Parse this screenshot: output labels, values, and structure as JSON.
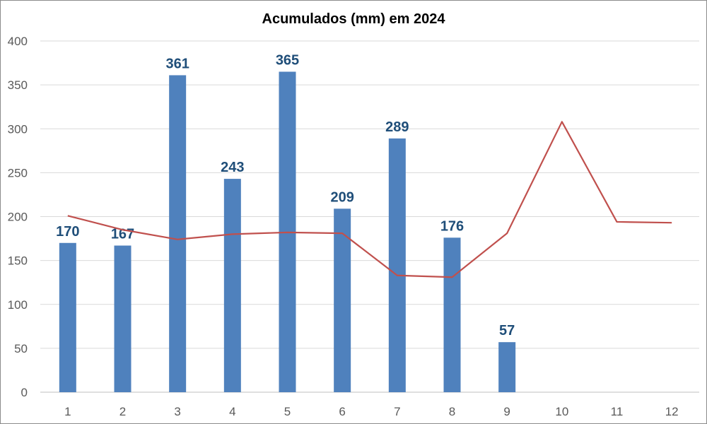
{
  "chart_data": {
    "type": "bar",
    "title": "Acumulados (mm) em 2024",
    "xlabel": "",
    "ylabel": "",
    "categories": [
      "1",
      "2",
      "3",
      "4",
      "5",
      "6",
      "7",
      "8",
      "9",
      "10",
      "11",
      "12"
    ],
    "series": [
      {
        "type": "bar",
        "values": [
          170,
          167,
          361,
          243,
          365,
          209,
          289,
          176,
          57,
          null,
          null,
          null
        ],
        "color": "#4f81bd",
        "data_labels": true
      },
      {
        "type": "line",
        "values": [
          201,
          185,
          174,
          180,
          182,
          181,
          133,
          131,
          181,
          308,
          194,
          193
        ],
        "color": "#c0504d"
      }
    ],
    "ylim": [
      0,
      400
    ],
    "yticks": [
      0,
      50,
      100,
      150,
      200,
      250,
      300,
      350,
      400
    ],
    "grid": true,
    "legend": "none",
    "data_label_color": "#1f4e79"
  }
}
